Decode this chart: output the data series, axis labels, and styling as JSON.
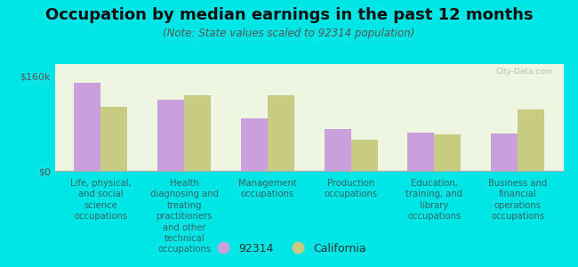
{
  "title": "Occupation by median earnings in the past 12 months",
  "subtitle": "(Note: State values scaled to 92314 population)",
  "categories": [
    "Life, physical,\nand social\nscience\noccupations",
    "Health\ndiagnosing and\ntreating\npractitioners\nand other\ntechnical\noccupations",
    "Management\noccupations",
    "Production\noccupations",
    "Education,\ntraining, and\nlibrary\noccupations",
    "Business and\nfinancial\noperations\noccupations"
  ],
  "values_92314": [
    148000,
    120000,
    88000,
    70000,
    65000,
    63000
  ],
  "values_california": [
    108000,
    128000,
    128000,
    52000,
    62000,
    103000
  ],
  "bar_color_92314": "#c9a0dc",
  "bar_color_california": "#c8cc82",
  "background_color": "#00e5e5",
  "plot_bg_color": "#eef5e0",
  "ylim": [
    0,
    180000
  ],
  "yticks": [
    0,
    160000
  ],
  "ytick_labels": [
    "$0",
    "$160k"
  ],
  "legend_labels": [
    "92314",
    "California"
  ],
  "bar_width": 0.32,
  "title_fontsize": 13,
  "subtitle_fontsize": 8.5,
  "xlabel_fontsize": 7.2,
  "legend_fontsize": 9,
  "watermark": "City-Data.com",
  "label_color": "#336666"
}
